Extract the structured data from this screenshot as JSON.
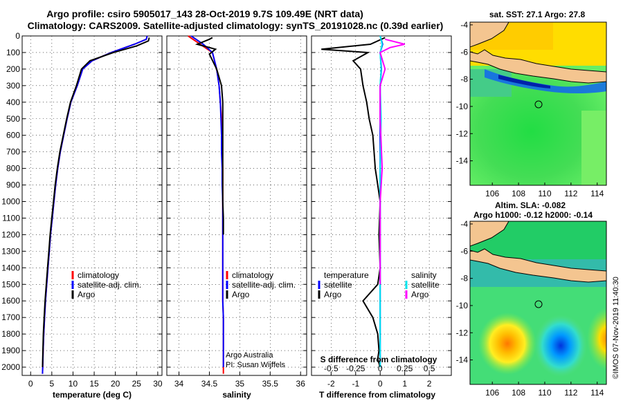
{
  "title_line1": "Argo profile: csiro 5905017_143 28-Oct-2019 9.7S 109.49E (NRT data)",
  "title_line2": "Climatology: CARS2009. Satellite-adjusted climatology: synTS_20191028.nc (0.39d earlier)",
  "credit_argo": "Argo Australia",
  "credit_pi": "PI: Susan Wijffels",
  "imos_stamp": "©IMOS 07-Nov-2019 11:40:30",
  "colors": {
    "climatology": "#ff0000",
    "satellite": "#0000ff",
    "argo": "#000000",
    "sat_t": "#0000ff",
    "sat_s": "#00e5ee",
    "argo_s": "#ff00ff"
  },
  "chart_data": [
    {
      "id": "temperature",
      "type": "line",
      "xlabel": "temperature (deg C)",
      "xlim": [
        -2,
        31
      ],
      "ylim": [
        0,
        2050
      ],
      "y_inverted": true,
      "xticks": [
        0,
        5,
        10,
        15,
        20,
        25,
        30
      ],
      "xtick_labels": [
        "0",
        "5",
        "10",
        "15",
        "20",
        "25",
        "30"
      ],
      "yticks": [
        0,
        100,
        200,
        300,
        400,
        500,
        600,
        700,
        800,
        900,
        1000,
        1100,
        1200,
        1300,
        1400,
        1500,
        1600,
        1700,
        1800,
        1900,
        2000
      ],
      "ytick_labels": [
        "0",
        "100",
        "200",
        "300",
        "400",
        "500",
        "600",
        "700",
        "800",
        "900",
        "1000",
        "1100",
        "1200",
        "1300",
        "1400",
        "1500",
        "1600",
        "1700",
        "1800",
        "1900",
        "2000"
      ],
      "legend": [
        "climatology",
        "satellite-adj. clim.",
        "Argo"
      ],
      "series": [
        {
          "name": "climatology",
          "color": "red",
          "x": [
            27.5,
            27.3,
            24.5,
            19,
            14.5,
            12.3,
            11,
            9.5,
            8.6,
            7.8,
            7,
            6.4,
            5.9,
            5.5,
            5.1,
            4.7,
            4.4,
            4.1,
            3.8,
            3.5,
            3.3,
            3.1,
            2.95,
            2.85,
            2.8
          ],
          "y": [
            0,
            20,
            50,
            100,
            150,
            200,
            300,
            400,
            500,
            600,
            700,
            800,
            900,
            1000,
            1100,
            1200,
            1300,
            1400,
            1500,
            1600,
            1700,
            1800,
            1900,
            2000,
            2040
          ]
        },
        {
          "name": "satellite-adj. clim.",
          "color": "blue",
          "x": [
            27.5,
            27.3,
            24.5,
            19,
            14.5,
            12.3,
            11,
            9.5,
            8.6,
            7.8,
            7,
            6.4,
            5.9,
            5.5,
            5.1,
            4.7,
            4.4,
            4.1,
            3.8,
            3.5,
            3.3,
            3.1,
            2.95,
            2.85,
            2.8
          ],
          "y": [
            0,
            20,
            50,
            100,
            150,
            200,
            300,
            400,
            500,
            600,
            700,
            800,
            900,
            1000,
            1100,
            1200,
            1300,
            1400,
            1500,
            1600,
            1700,
            1800,
            1900,
            2000,
            2040
          ]
        },
        {
          "name": "Argo",
          "color": "black",
          "x": [
            28,
            27.8,
            25,
            19.5,
            14,
            12,
            10.8,
            9.4,
            8.5,
            7.7,
            6.9,
            6.3,
            5.8,
            5.4,
            5,
            4.6,
            4.3,
            4,
            3.7,
            3.4,
            3.2,
            3,
            2.9,
            2.8
          ],
          "y": [
            10,
            30,
            60,
            100,
            150,
            200,
            300,
            400,
            500,
            600,
            700,
            800,
            900,
            1000,
            1100,
            1200,
            1300,
            1400,
            1500,
            1600,
            1700,
            1800,
            1900,
            2000
          ]
        }
      ]
    },
    {
      "id": "salinity",
      "type": "line",
      "xlabel": "salinity",
      "xlim": [
        33.8,
        36.1
      ],
      "ylim": [
        0,
        2050
      ],
      "y_inverted": true,
      "xticks": [
        34,
        34.5,
        35,
        35.5,
        36
      ],
      "xtick_labels": [
        "34",
        "34.5",
        "35",
        "35.5",
        "36"
      ],
      "legend": [
        "climatology",
        "satellite-adj. clim.",
        "Argo"
      ],
      "series": [
        {
          "name": "climatology",
          "color": "red",
          "x": [
            34.15,
            34.35,
            34.55,
            34.62,
            34.66,
            34.68,
            34.7,
            34.71,
            34.71,
            34.72,
            34.72,
            34.72,
            34.72,
            34.72,
            34.72,
            34.72,
            34.73,
            34.73,
            34.73,
            34.73,
            34.73
          ],
          "y": [
            0,
            50,
            100,
            200,
            300,
            400,
            500,
            600,
            700,
            800,
            900,
            1000,
            1200,
            1400,
            1500,
            1600,
            1700,
            1800,
            1900,
            2000,
            2040
          ]
        },
        {
          "name": "satellite-adj. clim.",
          "color": "blue",
          "x": [
            34.2,
            34.4,
            34.55,
            34.62,
            34.66,
            34.68,
            34.69,
            34.7,
            34.7,
            34.71,
            34.71,
            34.72,
            34.72,
            34.72,
            34.72,
            34.72,
            34.73,
            34.73,
            34.73,
            34.73
          ],
          "y": [
            0,
            50,
            100,
            200,
            300,
            400,
            500,
            600,
            700,
            800,
            900,
            1000,
            1200,
            1400,
            1500,
            1600,
            1700,
            1800,
            1900,
            2000
          ]
        },
        {
          "name": "Argo",
          "color": "black",
          "x": [
            34.55,
            34.5,
            34.3,
            34.6,
            34.5,
            34.62,
            34.7,
            34.72,
            34.72,
            34.72,
            34.72,
            34.72,
            34.72,
            34.72,
            34.73,
            34.73
          ],
          "y": [
            10,
            20,
            50,
            80,
            110,
            200,
            300,
            400,
            500,
            600,
            700,
            800,
            900,
            1000,
            1100,
            1200
          ]
        }
      ]
    },
    {
      "id": "difference",
      "type": "line",
      "xlabel": "T difference from climatology",
      "x2label": "S difference from climatology",
      "xlim": [
        -2.8,
        2.9
      ],
      "x2lim": [
        -0.7,
        0.725
      ],
      "ylim": [
        0,
        2050
      ],
      "y_inverted": true,
      "xticks": [
        -2,
        -1,
        0,
        1,
        2
      ],
      "xtick_labels": [
        "-2",
        "-1",
        "0",
        "1",
        "2"
      ],
      "x2ticks": [
        -0.5,
        -0.25,
        0,
        0.25,
        0.5
      ],
      "x2tick_labels": [
        "-0.5",
        "-0.25",
        "0",
        "0.25",
        "0.5"
      ],
      "legend_left_title": "temperature",
      "legend_right_title": "salinity",
      "legend_left": [
        "satellite",
        "Argo"
      ],
      "legend_right": [
        "satellite",
        "Argo"
      ],
      "series": [
        {
          "name": "T satellite",
          "color": "blue",
          "x": [
            0,
            0.1,
            0,
            0.05,
            0,
            0,
            0,
            0,
            0,
            0,
            0,
            0,
            0,
            0,
            0,
            0,
            0,
            0,
            0,
            0,
            0
          ],
          "y": [
            0,
            50,
            100,
            200,
            300,
            400,
            500,
            600,
            700,
            800,
            900,
            1000,
            1100,
            1200,
            1300,
            1400,
            1500,
            1600,
            1700,
            1800,
            2000
          ]
        },
        {
          "name": "T Argo",
          "color": "black",
          "x": [
            0.2,
            -0.4,
            -2.4,
            -0.5,
            -1.1,
            -0.8,
            -0.7,
            -0.55,
            -0.45,
            -0.3,
            -0.25,
            -0.2,
            -0.1,
            0,
            -0.05,
            0,
            -0.1,
            -0.7,
            -0.3,
            -0.1,
            -0.05,
            -0.1,
            0
          ],
          "y": [
            10,
            50,
            80,
            100,
            150,
            200,
            300,
            400,
            500,
            600,
            700,
            800,
            900,
            1000,
            1200,
            1400,
            1500,
            1600,
            1700,
            1800,
            1900,
            1950,
            2000
          ]
        },
        {
          "name": "S satellite",
          "color": "cyan",
          "x": [
            0,
            0.02,
            0,
            0.01,
            0,
            0.01,
            0,
            0,
            0,
            0
          ],
          "y": [
            0,
            50,
            100,
            200,
            300,
            500,
            800,
            1200,
            1600,
            2000
          ]
        },
        {
          "name": "S Argo",
          "color": "magenta",
          "x": [
            0.05,
            0.25,
            0.1,
            0,
            0.05,
            0,
            0,
            0.02,
            0,
            0,
            0,
            0
          ],
          "y": [
            20,
            50,
            70,
            100,
            200,
            300,
            500,
            800,
            1000,
            1200,
            1400,
            1500
          ]
        }
      ]
    },
    {
      "id": "sst_map",
      "type": "heatmap",
      "title": "sat. SST: 27.1 Argo: 27.8",
      "xticks": [
        106,
        108,
        110,
        112,
        114
      ],
      "xtick_labels": [
        "106",
        "108",
        "110",
        "112",
        "114"
      ],
      "yticks": [
        -4,
        -6,
        -8,
        -10,
        -12,
        -14
      ],
      "ytick_labels": [
        "-4",
        "-6",
        "-8",
        "-10",
        "-12",
        "-14"
      ],
      "xlim": [
        104.3,
        114.7
      ],
      "ylim": [
        -15.8,
        -3.8
      ],
      "argo_position": [
        109.49,
        -9.7
      ]
    },
    {
      "id": "sla_map",
      "type": "heatmap",
      "title_line1": "Altim. SLA: -0.082",
      "title_line2": "Argo h1000: -0.12 h2000: -0.14",
      "xticks": [
        106,
        108,
        110,
        112,
        114
      ],
      "xtick_labels": [
        "106",
        "108",
        "110",
        "112",
        "114"
      ],
      "yticks": [
        -4,
        -6,
        -8,
        -10,
        -12,
        -14
      ],
      "ytick_labels": [
        "-4",
        "-6",
        "-8",
        "-10",
        "-12",
        "-14"
      ],
      "xlim": [
        104.3,
        114.7
      ],
      "ylim": [
        -15.8,
        -3.8
      ],
      "argo_position": [
        109.49,
        -9.7
      ]
    }
  ]
}
